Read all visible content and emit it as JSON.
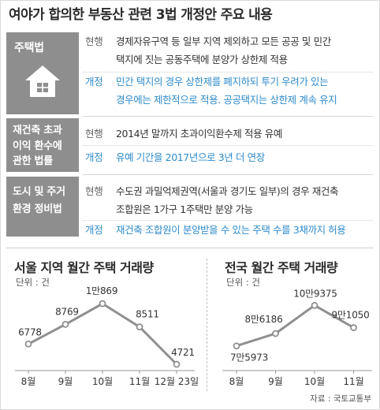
{
  "title": "여야가 합의한 부동산 관련 3법 개정안 주요 내용",
  "colors": {
    "law_label_bg": "#8e8e8e",
    "revised_text": "#2e8bcb",
    "current_tag": "#666666",
    "chart_line": "#8f8f8f"
  },
  "laws": [
    {
      "name_lines": [
        "주택법"
      ],
      "icon": "house-icon",
      "current_tag": "현행",
      "current_lines": [
        "경제자유구역 등 일부 지역 제외하고 모든 공공 및 민간",
        "택지에 짓는 공동주택에 분양가 상한제 적용"
      ],
      "revised_tag": "개정",
      "revised_lines": [
        "민간 택지의 경우 상한제를 폐지하되 투기 우려가 있는",
        "경우에는 제한적으로 적용. 공공택지는 상한제 계속 유지"
      ]
    },
    {
      "name_lines": [
        "재건축 초과",
        "이익 환수에",
        "관한 법률"
      ],
      "current_tag": "현행",
      "current_lines": [
        "2014년 말까지 초과이익환수제 적용 유예"
      ],
      "revised_tag": "개정",
      "revised_lines": [
        "유예 기간을 2017년으로 3년 더 연장"
      ]
    },
    {
      "name_lines": [
        "도시 및 주거",
        "환경 정비법"
      ],
      "current_tag": "현행",
      "current_lines": [
        "수도권 과밀억제권역(서울과 경기도 일부)의 경우 재건축",
        "조합원은 1가구 1주택만 분양 가능"
      ],
      "revised_tag": "개정",
      "revised_lines": [
        "재건축 조합원이 분양받을 수 있는 주택 수를 3채까지 허용"
      ]
    }
  ],
  "chart_data": [
    {
      "type": "line",
      "title": "서울 지역 월간 주택 거래량",
      "unit": "단위 : 건",
      "categories": [
        "8월",
        "9월",
        "10월",
        "11월",
        "12월 23일"
      ],
      "values": [
        6778,
        8769,
        10869,
        8511,
        4721
      ],
      "labels": [
        "6778",
        "8769",
        "1만869",
        "8511",
        "4721"
      ],
      "ylim": [
        4000,
        12000
      ],
      "grid": false
    },
    {
      "type": "line",
      "title": "전국 월간 주택 거래량",
      "unit": "단위 : 건",
      "categories": [
        "8월",
        "9월",
        "10월",
        "11월"
      ],
      "values": [
        75973,
        86186,
        109375,
        91050
      ],
      "labels": [
        "7만5973",
        "8만6186",
        "10만9375",
        "9만1050"
      ],
      "ylim": [
        55000,
        120000
      ],
      "grid": false
    }
  ],
  "source": "자료 : 국토교통부"
}
